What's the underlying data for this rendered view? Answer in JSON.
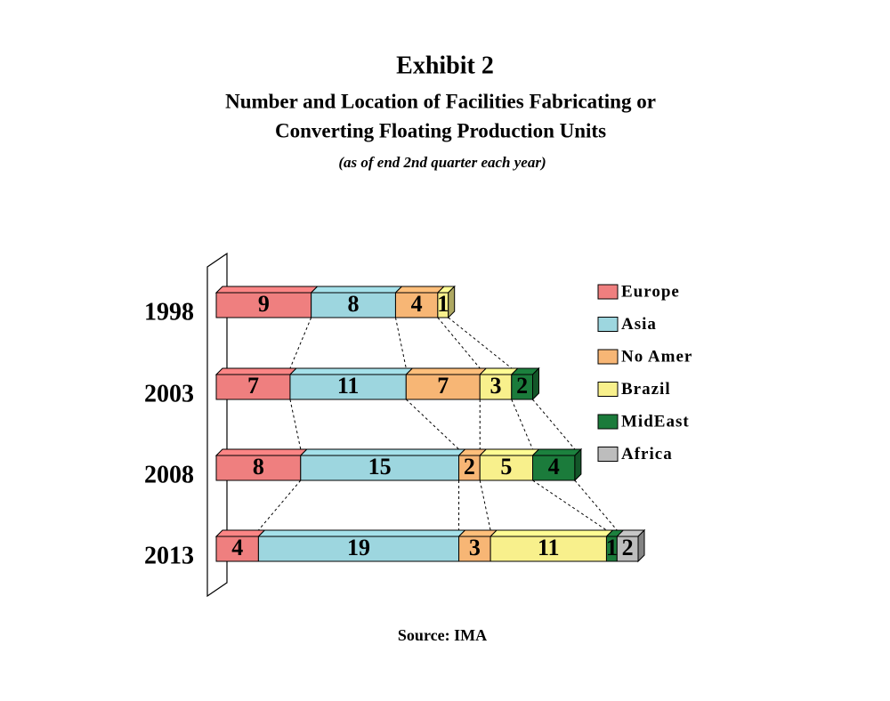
{
  "chart_data": {
    "type": "bar",
    "orientation": "horizontal",
    "stacked": true,
    "title": "Exhibit 2",
    "heading": [
      "Number and Location of Facilities Fabricating or",
      "Converting Floating Production Units"
    ],
    "subtitle": "(as of end 2nd quarter each year)",
    "source": "Source: IMA",
    "categories": [
      "1998",
      "2003",
      "2008",
      "2013"
    ],
    "series": [
      {
        "name": "Europe",
        "color": "#ef7f7f",
        "values": [
          9,
          7,
          8,
          4
        ]
      },
      {
        "name": "Asia",
        "color": "#9dd6df",
        "values": [
          8,
          11,
          15,
          19
        ]
      },
      {
        "name": "No Amer",
        "color": "#f7b675",
        "values": [
          4,
          7,
          2,
          3
        ]
      },
      {
        "name": "Brazil",
        "color": "#f8f08c",
        "values": [
          1,
          3,
          5,
          11
        ]
      },
      {
        "name": "MidEast",
        "color": "#1b7b3b",
        "values": [
          null,
          2,
          4,
          1
        ]
      },
      {
        "name": "Africa",
        "color": "#bdbdbd",
        "values": [
          null,
          null,
          null,
          2
        ]
      }
    ],
    "legend": "right"
  }
}
